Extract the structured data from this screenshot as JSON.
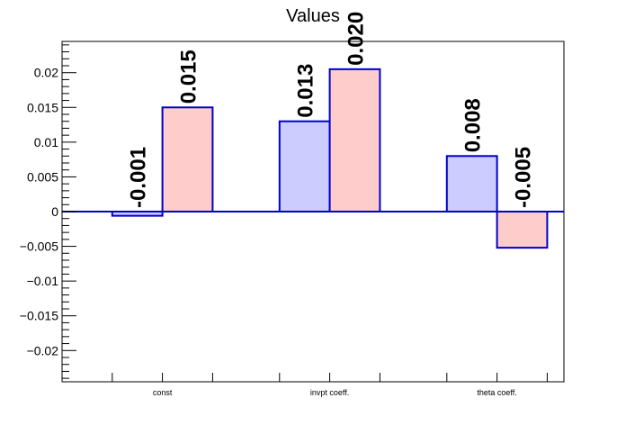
{
  "chart_data": {
    "type": "bar",
    "title": "Values",
    "xlabel": "",
    "ylabel": "",
    "categories": [
      "const",
      "invpt coeff.",
      "theta coeff."
    ],
    "series": [
      {
        "values": [
          -0.0006,
          0.013,
          0.008
        ],
        "labels": [
          "-0.001",
          "0.013",
          "0.008"
        ],
        "color": "#ccccff"
      },
      {
        "values": [
          0.015,
          0.0205,
          -0.0052
        ],
        "labels": [
          "0.015",
          "0.020",
          "-0.005"
        ],
        "color": "#ffcccc"
      }
    ],
    "bar_edge_color": "#0000cc",
    "ylim": [
      -0.0245,
      0.0245
    ],
    "yticks": [
      "0.02",
      "0.015",
      "0.01",
      "0.005",
      "0",
      "−0.005",
      "−0.01",
      "−0.015",
      "−0.02"
    ],
    "ytick_values": [
      0.02,
      0.015,
      0.01,
      0.005,
      0,
      -0.005,
      -0.01,
      -0.015,
      -0.02
    ],
    "grid": false,
    "legend": "none"
  }
}
